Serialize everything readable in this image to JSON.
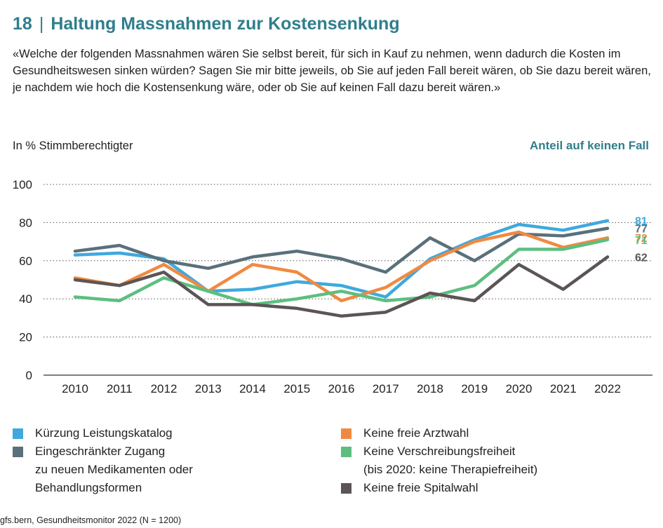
{
  "header": {
    "number": "18",
    "separator": "|",
    "title": "Haltung Massnahmen zur Kostensenkung"
  },
  "question": "«Welche der folgenden Massnahmen wären Sie selbst bereit, für sich in Kauf zu nehmen, wenn dadurch die Kosten im Gesundheitswesen sinken würden? Sagen Sie mir bitte jeweils, ob Sie auf jeden Fall bereit wären, ob Sie dazu bereit wären, je nachdem wie hoch die Kostensenkung wäre, oder ob Sie auf keinen Fall dazu bereit wären.»",
  "unit_label": "In % Stimmberechtigter",
  "subheading": "Anteil auf keinen Fall",
  "source": "gfs.bern, Gesundheitsmonitor 2022 (N = 1200)",
  "legend": {
    "left": [
      {
        "series": 0,
        "lines": [
          "Kürzung Leistungskatalog"
        ]
      },
      {
        "series": 1,
        "lines": [
          "Eingeschränkter Zugang",
          "zu neuen Medikamenten oder",
          "Behandlungsformen"
        ]
      }
    ],
    "right": [
      {
        "series": 2,
        "lines": [
          "Keine freie Arztwahl"
        ]
      },
      {
        "series": 3,
        "lines": [
          "Keine Verschreibungsfreiheit",
          "(bis 2020: keine Therapiefreiheit)"
        ]
      },
      {
        "series": 4,
        "lines": [
          "Keine freie Spitalwahl"
        ]
      }
    ]
  },
  "chart_data": {
    "type": "line",
    "x": [
      "2010",
      "2011",
      "2012",
      "2013",
      "2014",
      "2015",
      "2016",
      "2017",
      "2018",
      "2019",
      "2020",
      "2021",
      "2022"
    ],
    "ylim": [
      0,
      100
    ],
    "yticks": [
      0,
      20,
      40,
      60,
      80,
      100
    ],
    "grid": "horizontal dotted",
    "series": [
      {
        "name": "Kürzung Leistungskatalog",
        "color": "#3fa9de",
        "values": [
          63,
          64,
          61,
          44,
          45,
          49,
          47,
          41,
          61,
          71,
          79,
          76,
          81
        ],
        "end_label": "81"
      },
      {
        "name": "Eingeschränkter Zugang zu neuen Medikamenten oder Behandlungsformen",
        "color": "#5a707a",
        "values": [
          65,
          68,
          60,
          56,
          62,
          65,
          61,
          54,
          72,
          60,
          74,
          73,
          77
        ],
        "end_label": "77"
      },
      {
        "name": "Keine freie Arztwahl",
        "color": "#f08a42",
        "values": [
          51,
          47,
          58,
          44,
          58,
          54,
          39,
          46,
          60,
          70,
          75,
          67,
          72
        ],
        "end_label": "72"
      },
      {
        "name": "Keine Verschreibungsfreiheit (bis 2020: keine Therapiefreiheit)",
        "color": "#5dbe80",
        "values": [
          41,
          39,
          51,
          44,
          37,
          40,
          44,
          39,
          41,
          47,
          66,
          66,
          71
        ],
        "end_label": "71"
      },
      {
        "name": "Keine freie Spitalwahl",
        "color": "#5c5555",
        "values": [
          50,
          47,
          54,
          37,
          37,
          35,
          31,
          33,
          43,
          39,
          58,
          45,
          62
        ],
        "end_label": "62"
      }
    ]
  }
}
